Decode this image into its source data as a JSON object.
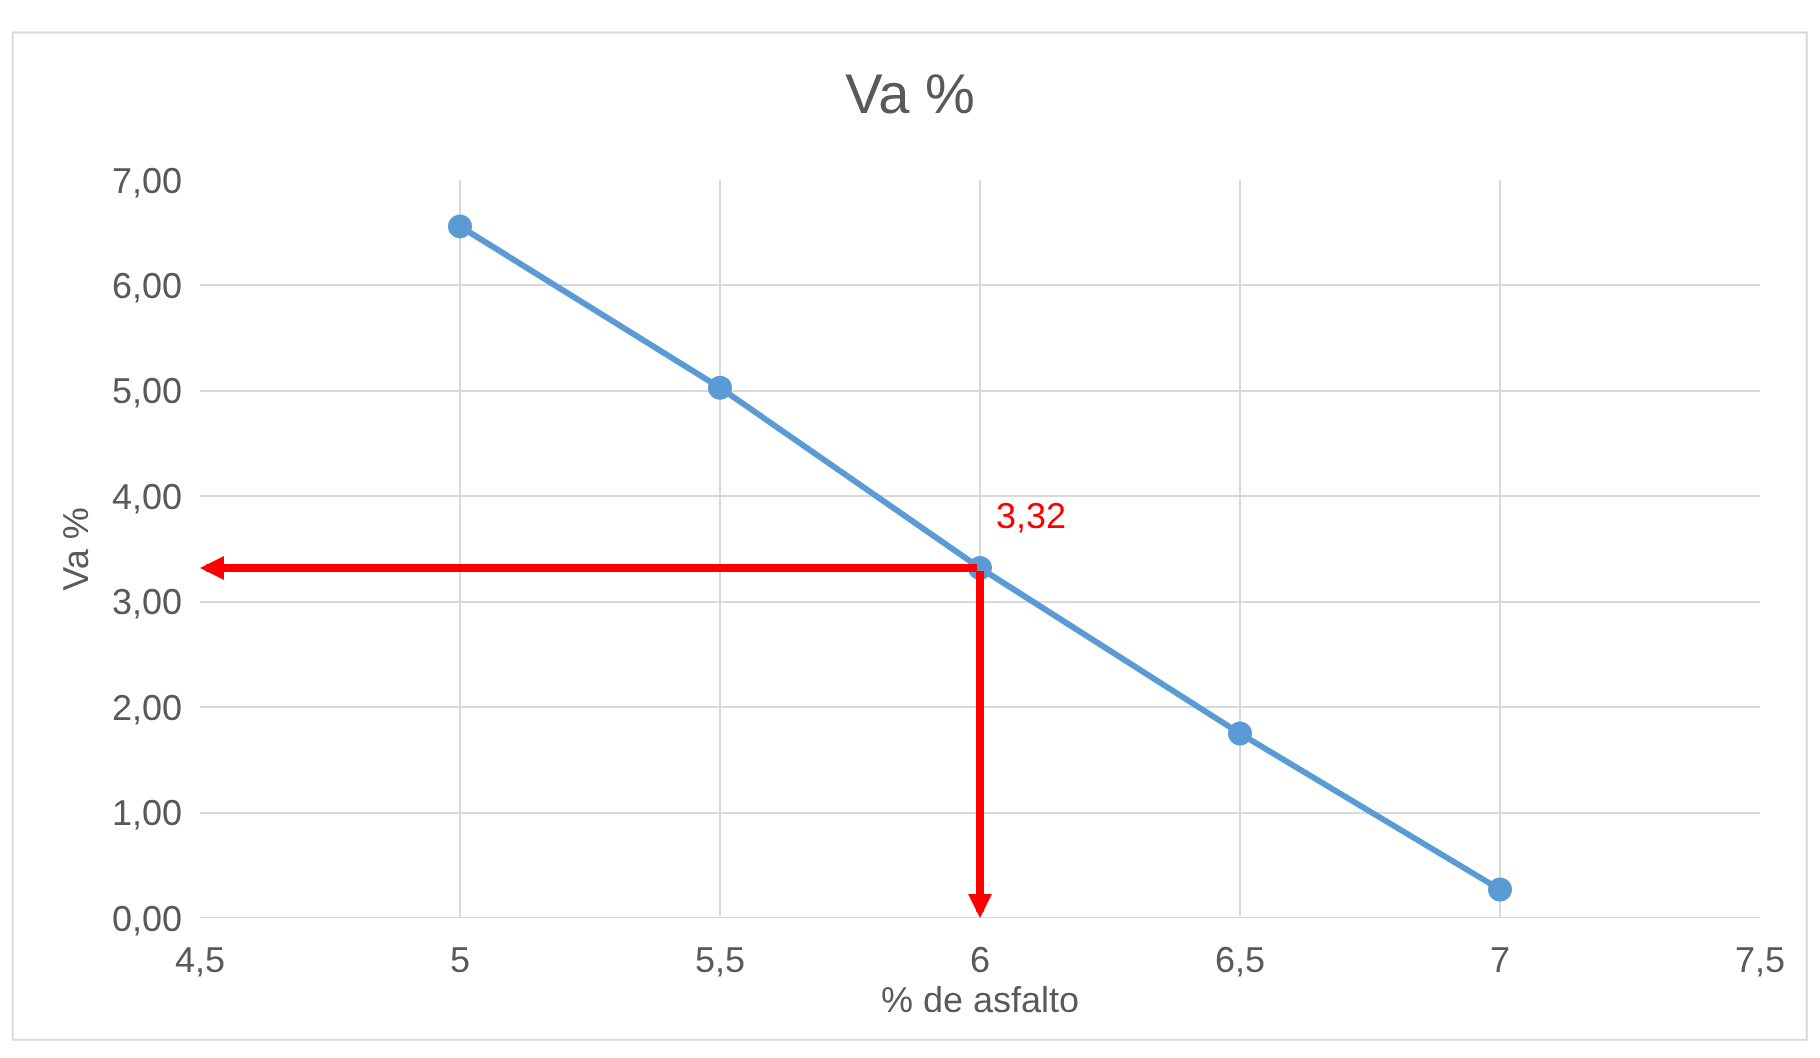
{
  "chart_data": {
    "type": "line",
    "title": "Va %",
    "xlabel": "% de asfalto",
    "ylabel": "Va %",
    "x": [
      5,
      5.5,
      6,
      6.5,
      7
    ],
    "series": [
      {
        "color": "#5b9bd5",
        "values": [
          6.56,
          5.03,
          3.32,
          1.75,
          0.27
        ]
      }
    ],
    "xlim": [
      4.5,
      7.5
    ],
    "xticks": [
      {
        "value": 4.5,
        "label": "4,5"
      },
      5,
      {
        "value": 5.5,
        "label": "5,5"
      },
      6,
      {
        "value": 6.5,
        "label": "6,5"
      },
      7,
      {
        "value": 7.5,
        "label": "7,5"
      }
    ],
    "ylim": [
      0,
      7
    ],
    "yticks": [
      {
        "value": 0,
        "label": "0,00"
      },
      {
        "value": 1,
        "label": "1,00"
      },
      {
        "value": 2,
        "label": "2,00"
      },
      {
        "value": 3,
        "label": "3,00"
      },
      {
        "value": 4,
        "label": "4,00"
      },
      {
        "value": 5,
        "label": "5,00"
      },
      {
        "value": 6,
        "label": "6,00"
      },
      {
        "value": 7,
        "label": "7,00"
      }
    ],
    "annotations": [
      {
        "text": "3,32",
        "x": 6,
        "y": 3.32
      }
    ],
    "grid": true,
    "marker": "circle",
    "line_style": "solid"
  }
}
